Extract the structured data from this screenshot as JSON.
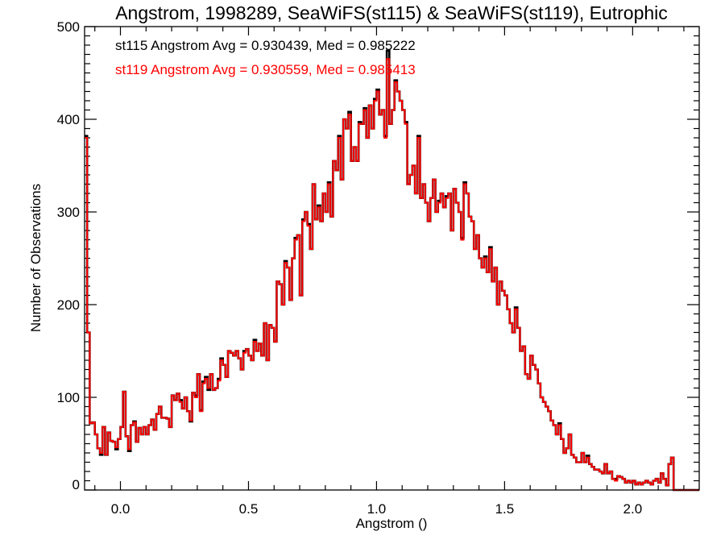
{
  "chart_data": {
    "type": "histogram-step",
    "title": "Angstrom, 1998289, SeaWiFS(st115) & SeaWiFS(st119), Eutrophic",
    "xlabel": "Angstrom ()",
    "ylabel": "Number of Observations",
    "xlim": [
      -0.14,
      2.26
    ],
    "ylim": [
      0,
      500
    ],
    "xticks": [
      0.0,
      0.5,
      1.0,
      1.5,
      2.0
    ],
    "xtick_labels": [
      "0.0",
      "0.5",
      "1.0",
      "1.5",
      "2.0"
    ],
    "xminor_step": 0.1,
    "yticks": [
      0,
      100,
      200,
      300,
      400,
      500
    ],
    "ytick_labels": [
      "0",
      "100",
      "200",
      "300",
      "400",
      "500"
    ],
    "yminor_step": 10,
    "grid": false,
    "bin_start": -0.14,
    "bin_width": 0.01,
    "annotations": [
      {
        "text": "st115 Angstrom Avg = 0.930439, Med = 0.985222",
        "color": "#000000"
      },
      {
        "text": "st119 Angstrom Avg = 0.930559, Med = 0.985413",
        "color": "#ff0000"
      }
    ],
    "series": [
      {
        "name": "st115",
        "color": "#000000",
        "values": [
          382,
          170,
          72,
          73,
          60,
          45,
          38,
          68,
          38,
          62,
          53,
          52,
          44,
          55,
          68,
          106,
          58,
          42,
          70,
          74,
          52,
          67,
          60,
          68,
          60,
          70,
          76,
          65,
          82,
          90,
          78,
          78,
          77,
          68,
          102,
          97,
          104,
          97,
          88,
          100,
          85,
          74,
          105,
          102,
          125,
          86,
          117,
          122,
          108,
          125,
          108,
          110,
          120,
          142,
          135,
          122,
          150,
          148,
          145,
          150,
          142,
          130,
          150,
          152,
          145,
          140,
          162,
          150,
          158,
          145,
          180,
          140,
          178,
          175,
          160,
          225,
          222,
          200,
          247,
          240,
          205,
          250,
          272,
          275,
          210,
          292,
          300,
          287,
          260,
          330,
          292,
          307,
          290,
          320,
          300,
          332,
          295,
          355,
          345,
          382,
          335,
          400,
          390,
          408,
          355,
          370,
          355,
          397,
          395,
          412,
          380,
          415,
          390,
          422,
          432,
          405,
          410,
          382,
          474,
          395,
          410,
          442,
          430,
          420,
          410,
          397,
          330,
          340,
          350,
          320,
          382,
          315,
          330,
          310,
          290,
          315,
          335,
          300,
          312,
          320,
          305,
          317,
          320,
          280,
          325,
          310,
          300,
          272,
          332,
          320,
          295,
          290,
          260,
          275,
          250,
          240,
          252,
          235,
          262,
          225,
          240,
          200,
          225,
          215,
          210,
          195,
          180,
          170,
          197,
          175,
          150,
          155,
          125,
          120,
          145,
          135,
          130,
          115,
          100,
          95,
          90,
          85,
          75,
          70,
          60,
          72,
          55,
          40,
          45,
          60,
          38,
          35,
          30,
          30,
          40,
          30,
          37,
          28,
          25,
          22,
          22,
          20,
          18,
          28,
          18,
          20,
          12,
          12,
          15,
          14,
          12,
          8,
          10,
          8,
          10,
          6,
          8,
          6,
          8,
          10,
          8,
          6,
          10,
          12,
          8,
          18,
          12,
          5,
          28,
          35,
          0,
          0,
          0,
          0,
          0,
          0,
          0,
          0,
          0,
          0
        ]
      },
      {
        "name": "st119",
        "color": "#ff0000",
        "values": [
          380,
          170,
          72,
          73,
          60,
          45,
          40,
          68,
          38,
          62,
          53,
          52,
          46,
          55,
          68,
          106,
          58,
          44,
          70,
          73,
          52,
          67,
          60,
          68,
          60,
          70,
          76,
          65,
          82,
          90,
          78,
          78,
          77,
          68,
          102,
          97,
          104,
          95,
          88,
          100,
          85,
          75,
          105,
          100,
          125,
          85,
          115,
          120,
          110,
          125,
          108,
          110,
          118,
          140,
          135,
          122,
          150,
          148,
          145,
          150,
          142,
          130,
          148,
          152,
          145,
          140,
          160,
          150,
          158,
          145,
          180,
          140,
          178,
          175,
          160,
          225,
          222,
          200,
          245,
          240,
          205,
          250,
          270,
          275,
          210,
          290,
          300,
          285,
          260,
          330,
          292,
          305,
          290,
          320,
          300,
          330,
          295,
          355,
          345,
          380,
          335,
          400,
          390,
          405,
          355,
          370,
          355,
          395,
          395,
          410,
          380,
          415,
          390,
          420,
          430,
          405,
          410,
          380,
          465,
          395,
          410,
          440,
          430,
          420,
          410,
          395,
          330,
          340,
          350,
          320,
          380,
          315,
          330,
          310,
          290,
          315,
          335,
          300,
          310,
          320,
          305,
          315,
          320,
          280,
          325,
          310,
          300,
          270,
          330,
          320,
          295,
          290,
          260,
          275,
          250,
          240,
          250,
          235,
          260,
          225,
          240,
          200,
          225,
          215,
          210,
          195,
          180,
          170,
          195,
          175,
          150,
          155,
          125,
          120,
          145,
          135,
          130,
          115,
          100,
          95,
          90,
          85,
          75,
          70,
          60,
          70,
          55,
          40,
          45,
          60,
          38,
          35,
          30,
          30,
          40,
          30,
          35,
          28,
          25,
          22,
          22,
          20,
          18,
          28,
          18,
          20,
          12,
          10,
          15,
          14,
          12,
          8,
          10,
          8,
          10,
          6,
          8,
          6,
          8,
          10,
          8,
          6,
          10,
          12,
          8,
          18,
          12,
          5,
          28,
          35,
          0,
          0,
          0,
          0,
          0,
          0,
          0,
          0,
          0,
          0
        ]
      }
    ]
  }
}
